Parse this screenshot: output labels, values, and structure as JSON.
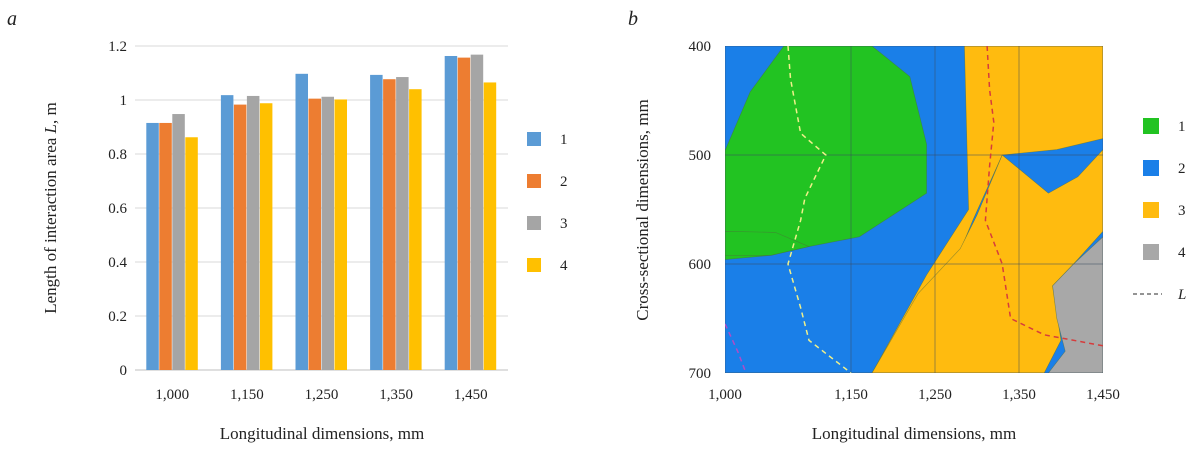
{
  "chart_data": [
    {
      "panel": "a",
      "type": "bar",
      "xlabel": "Longitudinal dimensions, mm",
      "ylabel": "Length of interaction area L, m",
      "ylabel_parts": [
        "Length of interaction area ",
        "L",
        ", m"
      ],
      "ylim": [
        0,
        1.2
      ],
      "yticks": [
        "0",
        "0.2",
        "0.4",
        "0.6",
        "0.8",
        "1",
        "1.2"
      ],
      "categories": [
        "1,000",
        "1,150",
        "1,250",
        "1,350",
        "1,450"
      ],
      "grid": true,
      "legend_position": "right",
      "series": [
        {
          "name": "1",
          "color": "#5b9bd5",
          "values": [
            0.915,
            1.018,
            1.097,
            1.093,
            1.163
          ]
        },
        {
          "name": "2",
          "color": "#ed7d31",
          "values": [
            0.915,
            0.983,
            1.005,
            1.077,
            1.157
          ]
        },
        {
          "name": "3",
          "color": "#a5a5a5",
          "values": [
            0.948,
            1.015,
            1.012,
            1.085,
            1.168
          ]
        },
        {
          "name": "4",
          "color": "#ffc000",
          "values": [
            0.862,
            0.988,
            1.002,
            1.04,
            1.065
          ]
        }
      ]
    },
    {
      "panel": "b",
      "type": "heatmap",
      "xlabel": "Longitudinal dimensions, mm",
      "ylabel": "Cross-sectional dimensions, mm",
      "xlim": [
        1000,
        1450
      ],
      "ylim": [
        400,
        700
      ],
      "y_inverted": true,
      "xticks": [
        "1,000",
        "1,150",
        "1,250",
        "1,350",
        "1,450"
      ],
      "yticks": [
        "400",
        "500",
        "600",
        "700"
      ],
      "legend_position": "right",
      "legend": [
        {
          "label": "1",
          "color": "#22c322",
          "kind": "swatch"
        },
        {
          "label": "2",
          "color": "#1a7fe8",
          "kind": "swatch"
        },
        {
          "label": "3",
          "color": "#ffbb0f",
          "kind": "swatch"
        },
        {
          "label": "4",
          "color": "#a8a8a8",
          "kind": "swatch"
        },
        {
          "label": "L",
          "color": "#555555",
          "kind": "dashed-line"
        }
      ],
      "background_color": "#1a7fe8",
      "regions": [
        {
          "zone": 1,
          "color": "#22c322",
          "points": [
            [
              1000,
              496
            ],
            [
              1030,
              442
            ],
            [
              1070,
              400
            ],
            [
              1175,
              400
            ],
            [
              1220,
              428
            ],
            [
              1240,
              490
            ],
            [
              1240,
              535
            ],
            [
              1160,
              575
            ],
            [
              1100,
              584
            ],
            [
              1055,
              592
            ],
            [
              1000,
              596
            ]
          ]
        },
        {
          "zone": 1,
          "color": "#22c322",
          "points": [
            [
              1000,
              592
            ],
            [
              1055,
              592
            ],
            [
              1100,
              584
            ],
            [
              1060,
              571
            ],
            [
              1000,
              570
            ]
          ]
        },
        {
          "zone": 3,
          "color": "#ffbb0f",
          "points": [
            [
              1285,
              400
            ],
            [
              1450,
              400
            ],
            [
              1450,
              485
            ],
            [
              1395,
              495
            ],
            [
              1330,
              500
            ],
            [
              1295,
              560
            ],
            [
              1280,
              588
            ],
            [
              1230,
              628
            ],
            [
              1195,
              700
            ],
            [
              1000,
              700
            ],
            [
              1000,
              700
            ],
            [
              1175,
              700
            ],
            [
              1240,
              610
            ],
            [
              1290,
              550
            ]
          ]
        },
        {
          "zone": 3,
          "color": "#ffbb0f",
          "points": [
            [
              1230,
              627
            ],
            [
              1280,
              586
            ],
            [
              1300,
              555
            ],
            [
              1330,
              500
            ],
            [
              1385,
              535
            ],
            [
              1420,
              520
            ],
            [
              1450,
              495
            ],
            [
              1450,
              570
            ],
            [
              1415,
              600
            ],
            [
              1390,
              620
            ],
            [
              1395,
              645
            ],
            [
              1400,
              670
            ],
            [
              1380,
              700
            ],
            [
              1175,
              700
            ]
          ]
        },
        {
          "zone": 4,
          "color": "#a8a8a8",
          "points": [
            [
              1450,
              575
            ],
            [
              1450,
              700
            ],
            [
              1385,
              700
            ],
            [
              1405,
              680
            ],
            [
              1395,
              650
            ],
            [
              1390,
              620
            ],
            [
              1415,
              600
            ]
          ]
        }
      ],
      "dashed_lines": [
        {
          "name": "L",
          "color": "#f0f08a",
          "points": [
            [
              1075,
              400
            ],
            [
              1078,
              430
            ],
            [
              1090,
              480
            ],
            [
              1120,
              500
            ],
            [
              1095,
              540
            ],
            [
              1090,
              560
            ],
            [
              1075,
              600
            ],
            [
              1090,
              640
            ],
            [
              1100,
              670
            ],
            [
              1150,
              700
            ]
          ]
        },
        {
          "name": "L",
          "color": "#d63c3c",
          "points": [
            [
              1312,
              400
            ],
            [
              1315,
              440
            ],
            [
              1320,
              470
            ],
            [
              1315,
              510
            ],
            [
              1310,
              560
            ],
            [
              1330,
              600
            ],
            [
              1340,
              650
            ],
            [
              1380,
              665
            ],
            [
              1450,
              675
            ]
          ]
        },
        {
          "name": "L",
          "color": "#b04cc8",
          "points": [
            [
              1000,
              655
            ],
            [
              1015,
              680
            ],
            [
              1025,
              700
            ]
          ]
        }
      ]
    }
  ]
}
